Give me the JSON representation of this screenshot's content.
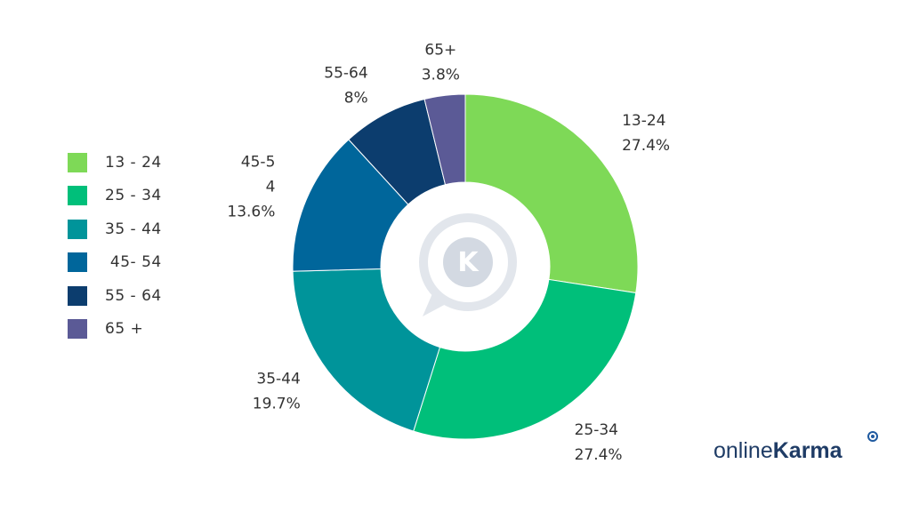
{
  "chart_data": {
    "type": "pie",
    "donut": true,
    "categories": [
      "13-24",
      "25-34",
      "35-44",
      "45-5\n4",
      "55-64",
      "65+"
    ],
    "values": [
      27.4,
      27.4,
      19.7,
      13.6,
      8,
      3.8
    ],
    "value_labels": [
      "27.4%",
      "27.4%",
      "19.7%",
      "13.6%",
      "8%",
      "3.8%"
    ],
    "colors": [
      "#7ed957",
      "#00bf7a",
      "#00949a",
      "#00669b",
      "#0c3d6e",
      "#5b5a96"
    ],
    "legend": {
      "placement": "left",
      "labels": [
        "13 - 24",
        "25 - 34",
        "35 - 44",
        " 45- 54",
        "55 - 64",
        "65 +"
      ]
    }
  },
  "brand": {
    "logo_text_light": "online",
    "logo_text_bold": "Karma",
    "center_icon": "K"
  }
}
